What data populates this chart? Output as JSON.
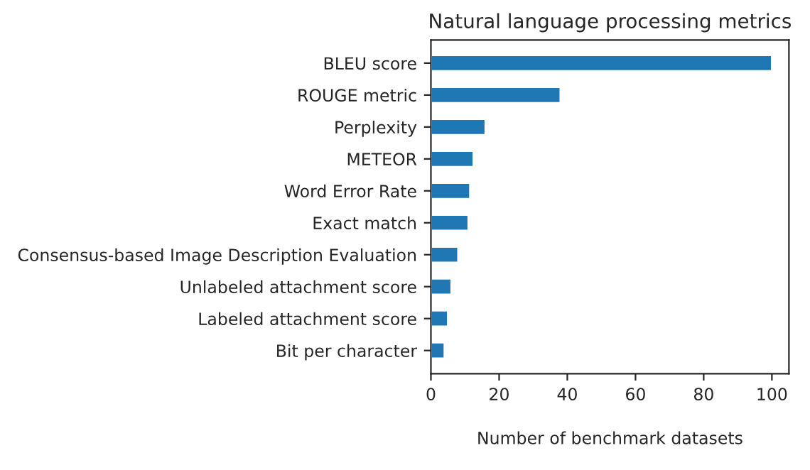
{
  "chart_data": {
    "type": "bar",
    "orientation": "horizontal",
    "title": "Natural language processing metrics",
    "xlabel": "Number of benchmark datasets",
    "categories": [
      "BLEU score",
      "ROUGE metric",
      "Perplexity",
      "METEOR",
      "Word Error Rate",
      "Exact match",
      "Consensus-based Image Description Evaluation",
      "Unlabeled attachment score",
      "Labeled attachment score",
      "Bit per character"
    ],
    "values": [
      100,
      38,
      16,
      12.5,
      11.5,
      11,
      8,
      6,
      5,
      4
    ],
    "color": "#1f77b4",
    "xlim": [
      0,
      105
    ],
    "xticks": [
      0,
      20,
      40,
      60,
      80,
      100
    ],
    "grid": false,
    "legend": false
  }
}
